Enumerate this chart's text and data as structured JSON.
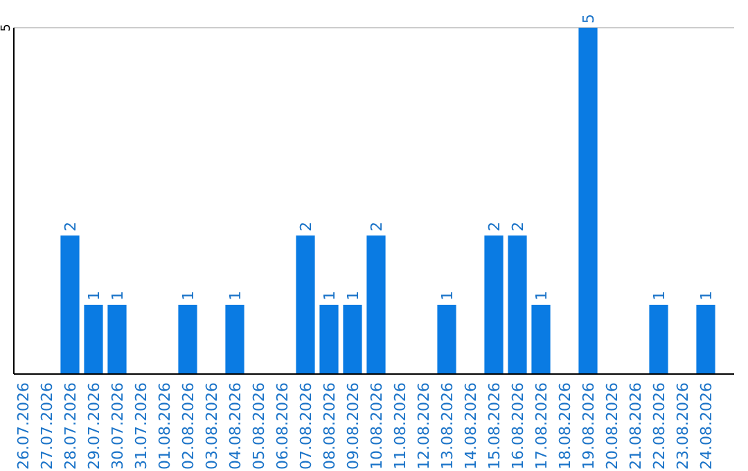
{
  "chart_data": {
    "type": "bar",
    "categories": [
      "26.07.2026",
      "27.07.2026",
      "28.07.2026",
      "29.07.2026",
      "30.07.2026",
      "31.07.2026",
      "01.08.2026",
      "02.08.2026",
      "03.08.2026",
      "04.08.2026",
      "05.08.2026",
      "06.08.2026",
      "07.08.2026",
      "08.08.2026",
      "09.08.2026",
      "10.08.2026",
      "11.08.2026",
      "12.08.2026",
      "13.08.2026",
      "14.08.2026",
      "15.08.2026",
      "16.08.2026",
      "17.08.2026",
      "18.08.2026",
      "19.08.2026",
      "20.08.2026",
      "21.08.2026",
      "22.08.2026",
      "23.08.2026",
      "24.08.2026"
    ],
    "values": [
      0,
      0,
      2,
      1,
      1,
      0,
      0,
      1,
      0,
      1,
      0,
      0,
      2,
      1,
      1,
      2,
      0,
      0,
      1,
      0,
      2,
      2,
      1,
      0,
      5,
      0,
      0,
      1,
      0,
      1
    ],
    "value_labels": [
      null,
      null,
      "2",
      "1",
      "1",
      null,
      null,
      "1",
      null,
      "1",
      null,
      null,
      "2",
      "1",
      "1",
      "2",
      null,
      null,
      "1",
      null,
      "2",
      "2",
      "1",
      null,
      "5",
      null,
      null,
      "1",
      null,
      "1"
    ],
    "color": "#0a7be3",
    "ylim": [
      0,
      5
    ],
    "yticks": [
      5
    ],
    "ref_lines": [
      {
        "axis": "y",
        "value": 5,
        "color": "#cccccc"
      }
    ]
  }
}
